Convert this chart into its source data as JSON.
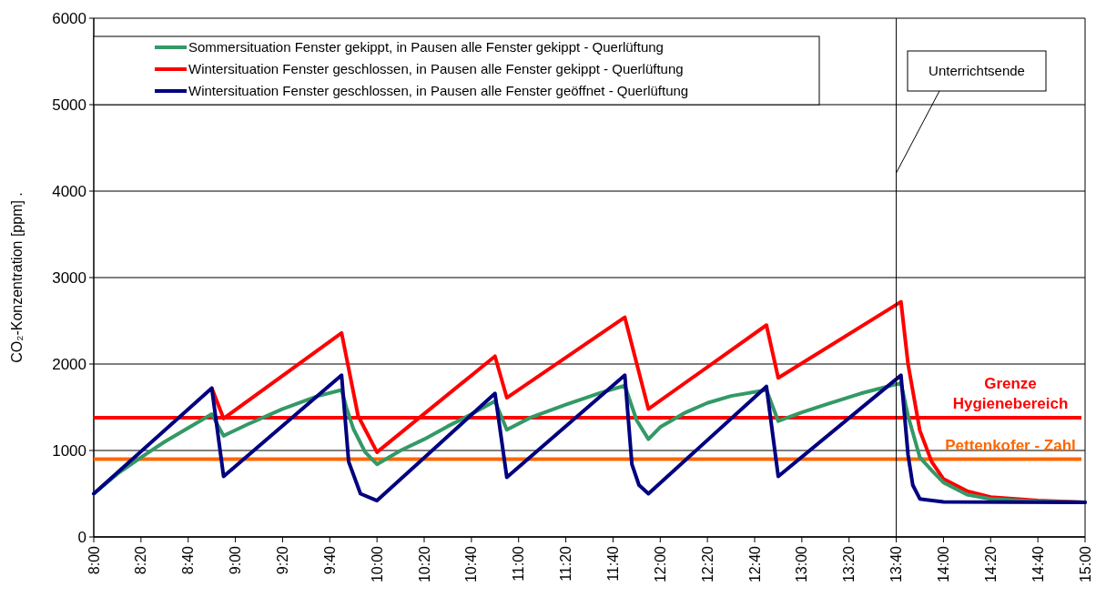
{
  "chart_data": {
    "type": "line",
    "ylabel": "CO₂-Konzentration [ppm] .",
    "xlim": [
      8,
      15
    ],
    "ylim": [
      0,
      6000
    ],
    "yticks": [
      0,
      1000,
      2000,
      3000,
      4000,
      5000,
      6000
    ],
    "xticks": [
      {
        "value": 8,
        "label": "8:00"
      },
      {
        "value": 8.3333,
        "label": "8:20"
      },
      {
        "value": 8.6667,
        "label": "8:40"
      },
      {
        "value": 9,
        "label": "9:00"
      },
      {
        "value": 9.3333,
        "label": "9:20"
      },
      {
        "value": 9.6667,
        "label": "9:40"
      },
      {
        "value": 10,
        "label": "10:00"
      },
      {
        "value": 10.3333,
        "label": "10:20"
      },
      {
        "value": 10.6667,
        "label": "10:40"
      },
      {
        "value": 11,
        "label": "11:00"
      },
      {
        "value": 11.3333,
        "label": "11:20"
      },
      {
        "value": 11.6667,
        "label": "11:40"
      },
      {
        "value": 12,
        "label": "12:00"
      },
      {
        "value": 12.3333,
        "label": "12:20"
      },
      {
        "value": 12.6667,
        "label": "12:40"
      },
      {
        "value": 13,
        "label": "13:00"
      },
      {
        "value": 13.3333,
        "label": "13:20"
      },
      {
        "value": 13.6667,
        "label": "13:40"
      },
      {
        "value": 14,
        "label": "14:00"
      },
      {
        "value": 14.3333,
        "label": "14:20"
      },
      {
        "value": 14.6667,
        "label": "14:40"
      },
      {
        "value": 15,
        "label": "15:00"
      }
    ],
    "grid": "y",
    "legend": "top",
    "line_style": "solid",
    "marker": "none",
    "series": [
      {
        "name": "Wintersituation Fenster geschlossen, in Pausen alle Fenster gekippt - Querlüftung",
        "color": "#ff0000",
        "x": [
          8.8333,
          8.9167,
          9.75,
          9.8667,
          10,
          10.8333,
          10.9167,
          11.75,
          11.9167,
          12.75,
          12.8333,
          13.7,
          13.75,
          13.8333,
          13.9167,
          14,
          14.1667,
          14.3333,
          14.6667,
          15
        ],
        "values": [
          1720,
          1370,
          2360,
          1400,
          980,
          2090,
          1610,
          2540,
          1480,
          2450,
          1840,
          2720,
          2000,
          1230,
          870,
          670,
          530,
          460,
          420,
          400
        ]
      },
      {
        "name": "Sommersituation Fenster gekippt, in Pausen alle Fenster gekippt - Querlüftung",
        "color": "#339966",
        "x": [
          8,
          8.1667,
          8.3333,
          8.5,
          8.6667,
          8.8333,
          8.9167,
          9.0833,
          9.3333,
          9.5833,
          9.75,
          9.7833,
          9.8333,
          9.9167,
          10,
          10.1667,
          10.3333,
          10.5,
          10.6667,
          10.8333,
          10.9167,
          11.0833,
          11.3333,
          11.5833,
          11.75,
          11.8333,
          11.9167,
          12,
          12.1667,
          12.3333,
          12.5,
          12.75,
          12.8333,
          13,
          13.1667,
          13.4167,
          13.7,
          13.75,
          13.8333,
          13.9167,
          14,
          14.1667,
          14.3333,
          14.6667,
          15
        ],
        "values": [
          500,
          730,
          920,
          1100,
          1260,
          1420,
          1170,
          1300,
          1480,
          1630,
          1700,
          1500,
          1250,
          980,
          840,
          1000,
          1130,
          1280,
          1420,
          1570,
          1240,
          1380,
          1530,
          1670,
          1750,
          1350,
          1130,
          1270,
          1430,
          1550,
          1630,
          1700,
          1340,
          1440,
          1530,
          1660,
          1780,
          1400,
          920,
          770,
          630,
          490,
          440,
          410,
          400
        ]
      },
      {
        "name": "Wintersituation Fenster geschlossen, in Pausen alle Fenster geöffnet - Querlüftung",
        "color": "#000080",
        "x": [
          8,
          8.8333,
          8.9167,
          9.75,
          9.8,
          9.8833,
          10,
          10.8333,
          10.9167,
          11.75,
          11.8,
          11.85,
          11.9167,
          12.75,
          12.8333,
          13.7,
          13.75,
          13.7833,
          13.8333,
          14,
          15
        ],
        "values": [
          500,
          1720,
          700,
          1870,
          870,
          500,
          420,
          1660,
          690,
          1870,
          840,
          600,
          500,
          1740,
          700,
          1870,
          950,
          600,
          440,
          405,
          400
        ]
      }
    ],
    "ref_lines": [
      {
        "axis": "y",
        "value": 1380,
        "label": "Grenze\nHygienebereich",
        "color": "#ff0000"
      },
      {
        "axis": "y",
        "value": 900,
        "label": "Pettenkofer - Zahl",
        "color": "#ff6600"
      },
      {
        "axis": "x",
        "value": 13.6667,
        "label": "Unterrichtsende",
        "color": "#000000"
      }
    ]
  }
}
